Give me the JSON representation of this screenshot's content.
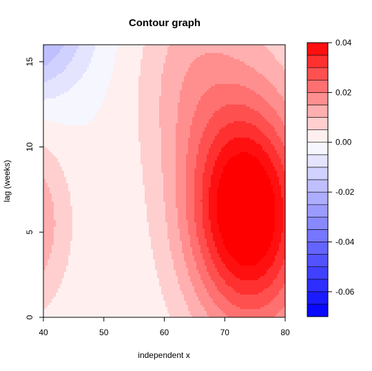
{
  "chart_data": {
    "type": "heatmap",
    "subtype": "filled-contour",
    "title": "Contour graph",
    "xlabel": "independent x",
    "ylabel": "lag (weeks)",
    "xlim": [
      40,
      80
    ],
    "ylim": [
      0,
      16
    ],
    "x_ticks": [
      40,
      50,
      60,
      70,
      80
    ],
    "y_ticks": [
      0,
      5,
      10,
      15
    ],
    "x_tick_labels": [
      "40",
      "50",
      "60",
      "70",
      "80"
    ],
    "y_tick_labels": [
      "0",
      "5",
      "10",
      "15"
    ],
    "grid": false,
    "legend_position": "right",
    "color_scale": {
      "range": [
        -0.07,
        0.04
      ],
      "step": 0.005,
      "low_color": "#0000ff",
      "mid_color": "#ffffff",
      "high_color": "#ff0000",
      "tick_values": [
        0.04,
        0.02,
        0.0,
        -0.02,
        -0.04,
        -0.06
      ],
      "tick_labels": [
        "0.04",
        "0.02",
        "0.00",
        "-0.02",
        "-0.04",
        "-0.06"
      ]
    },
    "features": [
      {
        "kind": "peak",
        "x": 73.5,
        "y": 6.5,
        "value": 0.035
      },
      {
        "kind": "peak",
        "x": 40,
        "y": 5.5,
        "value": 0.012
      },
      {
        "kind": "trough",
        "x": 40,
        "y": 16,
        "value": -0.02
      }
    ]
  }
}
